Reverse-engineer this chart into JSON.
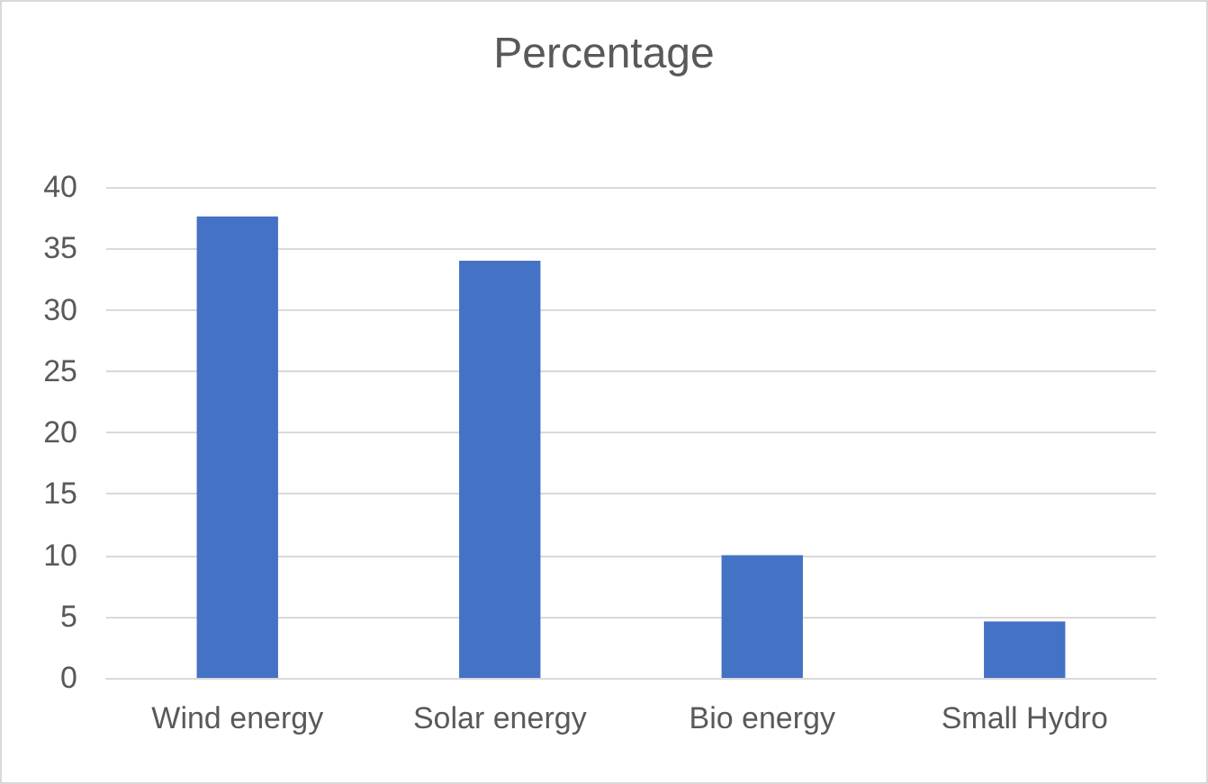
{
  "chart_data": {
    "type": "bar",
    "title": "Percentage",
    "categories": [
      "Wind energy",
      "Solar energy",
      "Bio energy",
      "Small Hydro"
    ],
    "values": [
      37.6,
      34.0,
      10.0,
      4.6
    ],
    "color": "#4472c4",
    "ylim": [
      0,
      40
    ],
    "yticks": [
      0,
      5,
      10,
      15,
      20,
      25,
      30,
      35,
      40
    ],
    "grid": "y"
  }
}
